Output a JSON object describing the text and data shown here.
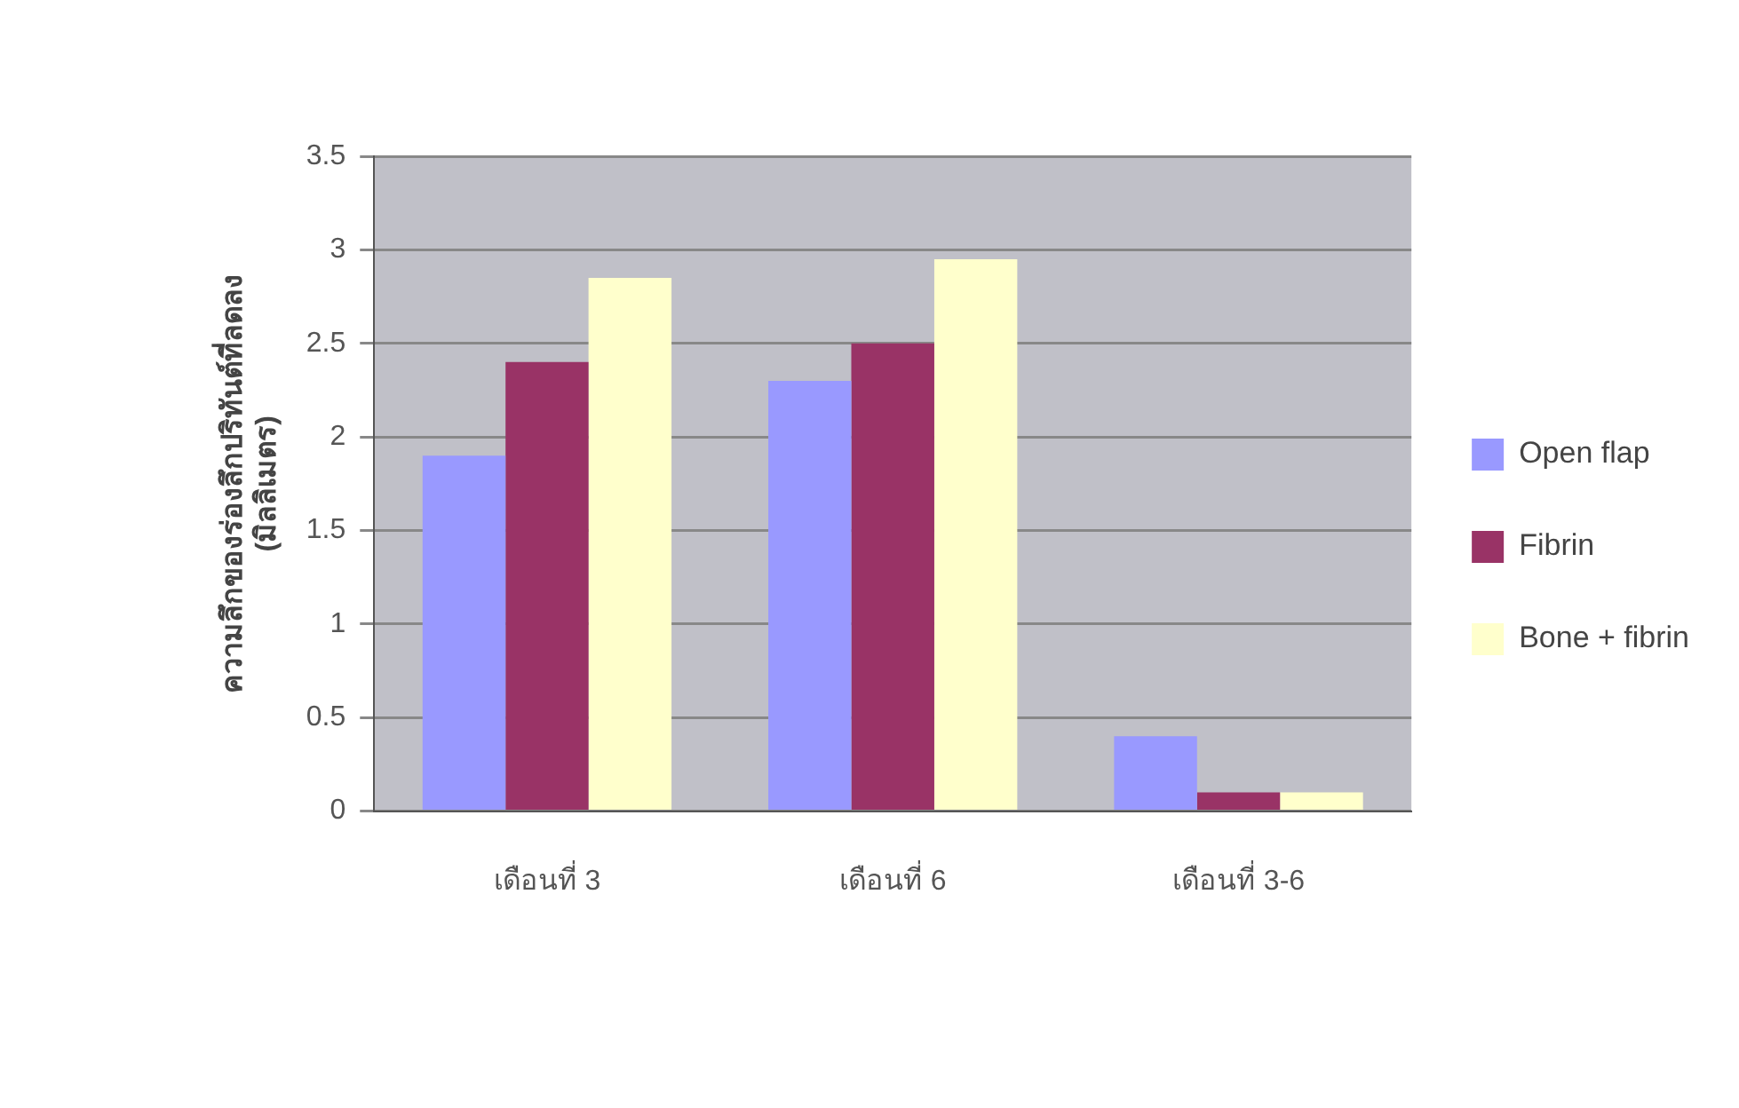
{
  "chart_data": {
    "type": "bar",
    "ylabel": "ความลึกของร่องลึกปริทันต์ที่ลดลง (มิลลิเมตร)",
    "categories": [
      "เดือนที่ 3",
      "เดือนที่ 6",
      "เดือนที่ 3-6"
    ],
    "series": [
      {
        "name": "Open flap",
        "color": "#9999ff",
        "values": [
          1.9,
          2.3,
          0.4
        ]
      },
      {
        "name": "Fibrin",
        "color": "#993366",
        "values": [
          2.4,
          2.5,
          0.1
        ]
      },
      {
        "name": "Bone + fibrin",
        "color": "#ffffcc",
        "values": [
          2.85,
          2.95,
          0.1
        ]
      }
    ],
    "ylim": [
      0,
      3.5
    ],
    "yticks": [
      0,
      0.5,
      1,
      1.5,
      2,
      2.5,
      3,
      3.5
    ],
    "grid": "y",
    "legend": "right"
  }
}
